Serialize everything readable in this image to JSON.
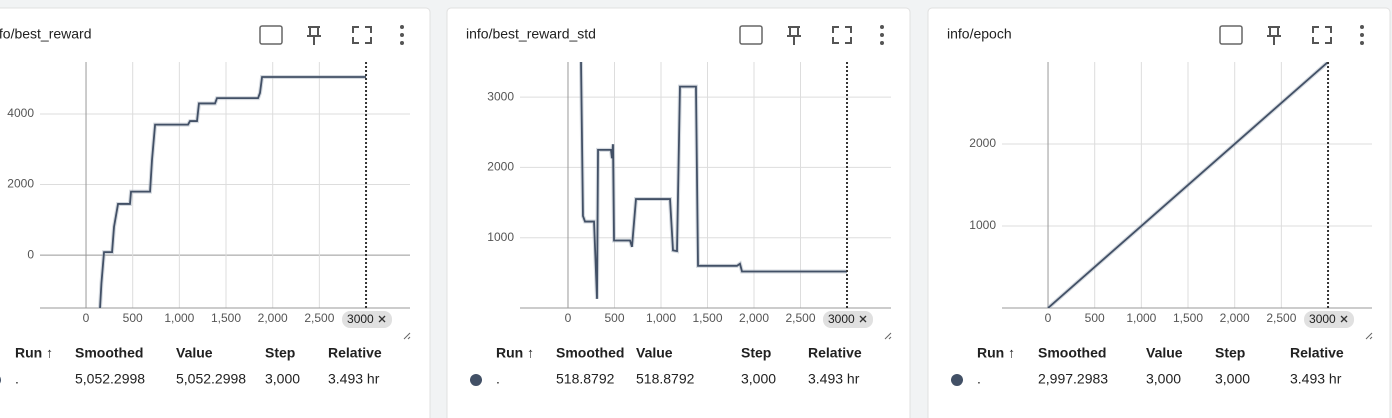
{
  "chart_data": [
    {
      "type": "line",
      "title": "info/best_reward",
      "color": "#425066",
      "x": [
        150,
        165,
        193,
        279,
        300,
        343,
        471,
        482,
        686,
        707,
        740,
        1093,
        1114,
        1189,
        1210,
        1382,
        1403,
        1843,
        1864,
        1886,
        3000
      ],
      "values": [
        -1500,
        -800,
        85,
        85,
        800,
        1450,
        1450,
        1800,
        1800,
        2700,
        3700,
        3700,
        3800,
        3800,
        4300,
        4300,
        4450,
        4450,
        4600,
        5050,
        5050
      ],
      "xlim": [
        -493,
        3471
      ],
      "ylim": [
        -1500,
        5475
      ],
      "xticks": [
        0,
        500,
        {
          "value": 1000,
          "label": "1,000"
        },
        {
          "value": 1500,
          "label": "1,500"
        },
        {
          "value": 2000,
          "label": "2,000"
        },
        {
          "value": 2500,
          "label": "2,500"
        }
      ],
      "yticks": [
        0,
        2000,
        4000
      ],
      "grid": true,
      "cursor": 3000
    },
    {
      "type": "line",
      "title": "info/best_reward_std",
      "color": "#425066",
      "x": [
        140,
        161,
        183,
        280,
        312,
        323,
        462,
        473,
        484,
        495,
        667,
        688,
        731,
        1097,
        1129,
        1172,
        1204,
        1376,
        1398,
        1817,
        1849,
        1871,
        3000
      ],
      "values": [
        3500,
        1310,
        1230,
        1230,
        130,
        2250,
        2250,
        2130,
        2330,
        960,
        960,
        870,
        1550,
        1550,
        820,
        810,
        3150,
        3150,
        600,
        600,
        630,
        520,
        519
      ],
      "xlim": [
        -516,
        3473
      ],
      "ylim": [
        0,
        3500
      ],
      "xticks": [
        0,
        500,
        {
          "value": 1000,
          "label": "1,000"
        },
        {
          "value": 1500,
          "label": "1,500"
        },
        {
          "value": 2000,
          "label": "2,000"
        },
        {
          "value": 2500,
          "label": "2,500"
        }
      ],
      "yticks": [
        1000,
        2000,
        3000
      ],
      "grid": true,
      "cursor": 3000
    },
    {
      "type": "line",
      "title": "info/epoch",
      "color": "#425066",
      "x": [
        0,
        3000
      ],
      "values": [
        0,
        3000
      ],
      "xlim": [
        -493,
        3471
      ],
      "ylim": [
        0,
        3000
      ],
      "xticks": [
        0,
        500,
        {
          "value": 1000,
          "label": "1,000"
        },
        {
          "value": 1500,
          "label": "1,500"
        },
        {
          "value": 2000,
          "label": "2,000"
        },
        {
          "value": 2500,
          "label": "2,500"
        }
      ],
      "yticks": [
        1000,
        2000
      ],
      "grid": true,
      "cursor": 3000
    }
  ],
  "tables": [
    {
      "headers": [
        "Run ↑",
        "Smoothed",
        "Value",
        "Step",
        "Relative"
      ],
      "rows": [
        [
          ".",
          "5,052.2998",
          "5,052.2998",
          "3,000",
          "3.493 hr"
        ]
      ]
    },
    {
      "headers": [
        "Run ↑",
        "Smoothed",
        "Value",
        "Step",
        "Relative"
      ],
      "rows": [
        [
          ".",
          "518.8792",
          "518.8792",
          "3,000",
          "3.493 hr"
        ]
      ]
    },
    {
      "headers": [
        "Run ↑",
        "Smoothed",
        "Value",
        "Step",
        "Relative"
      ],
      "rows": [
        [
          ".",
          "2,997.2983",
          "3,000",
          "3,000",
          "3.493 hr"
        ]
      ]
    }
  ]
}
